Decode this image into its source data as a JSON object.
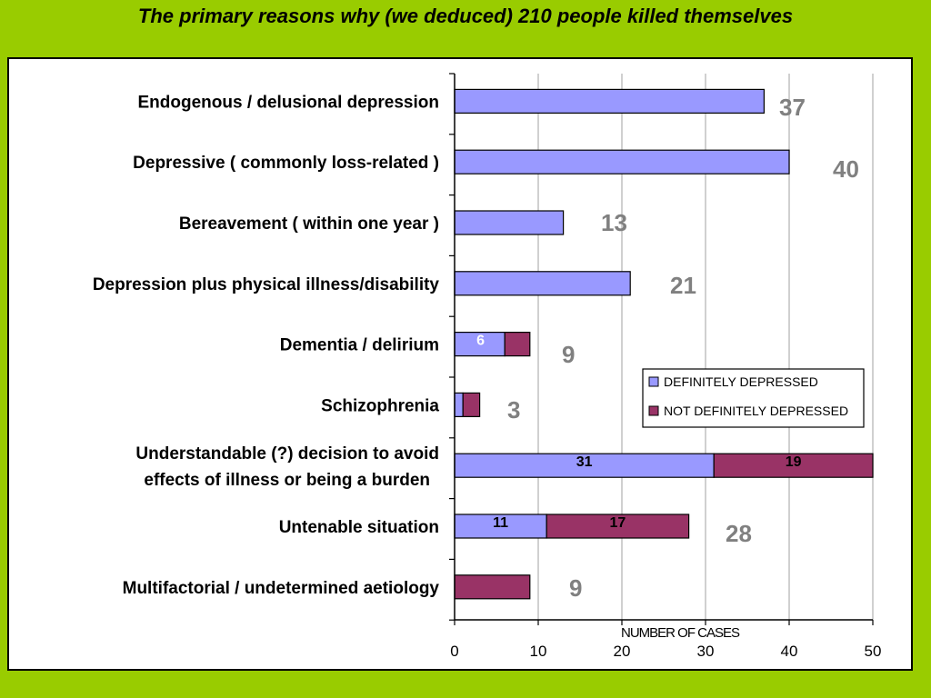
{
  "title": "The primary reasons why (we deduced) 210 people killed themselves",
  "colors": {
    "background": "#99cc00",
    "definitely": "#9999ff",
    "not_definitely": "#993366",
    "total_label": "#808080",
    "grid": "#c0c0c0"
  },
  "chart_data": {
    "type": "bar",
    "orientation": "horizontal",
    "stacked": true,
    "xlabel": "NUMBER OF CASES",
    "xlim": [
      0,
      50
    ],
    "xticks": [
      "0",
      "10",
      "20",
      "30",
      "40",
      "50"
    ],
    "grid": true,
    "legend_position": "right",
    "categories": [
      "Endogenous / delusional depression",
      "Depressive ( commonly loss-related )",
      "Bereavement ( within one year )",
      "Depression plus physical illness/disability",
      "Dementia / delirium",
      "Schizophrenia",
      "Understandable (?) decision to avoid\neffects of illness or being a burden",
      "Untenable situation",
      "Multifactorial / undetermined aetiology"
    ],
    "series": [
      {
        "name": "DEFINITELY DEPRESSED",
        "values": [
          37,
          40,
          13,
          21,
          6,
          1,
          31,
          11,
          0
        ]
      },
      {
        "name": "NOT DEFINITELY DEPRESSED",
        "values": [
          0,
          0,
          0,
          0,
          3,
          2,
          19,
          17,
          9
        ]
      }
    ],
    "totals": [
      "37",
      "40",
      "13",
      "21",
      "9",
      "3",
      "",
      "28",
      "9"
    ],
    "segment_labels": [
      [
        "",
        "",
        "",
        "",
        "6",
        "",
        "31",
        "11",
        ""
      ],
      [
        "",
        "",
        "",
        "",
        "",
        "",
        "19",
        "17",
        ""
      ]
    ]
  }
}
